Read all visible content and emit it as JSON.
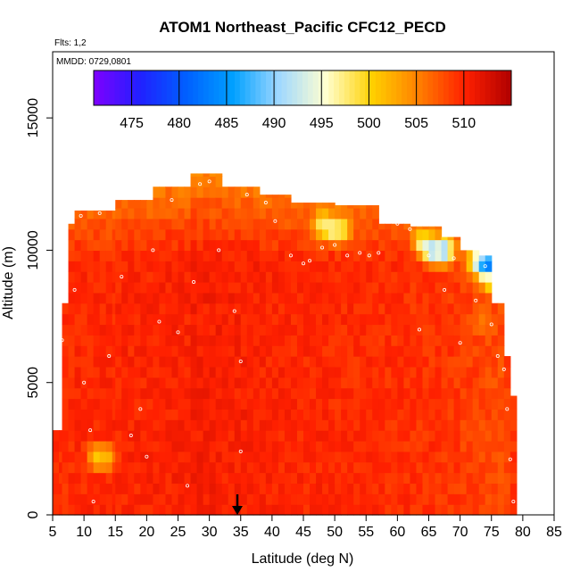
{
  "chart_data": {
    "type": "heatmap",
    "title": "ATOM1 Northeast_Pacific CFC12_PECD",
    "flights_label": "Flts: 1,2",
    "dates_label": "MMDD: 0729,0801",
    "xlabel": "Latitude (deg N)",
    "ylabel": "Altitude (m)",
    "xlim": [
      5,
      85
    ],
    "ylim": [
      0,
      17500
    ],
    "xticks": [
      "5",
      "10",
      "15",
      "20",
      "25",
      "30",
      "35",
      "40",
      "45",
      "50",
      "55",
      "60",
      "65",
      "70",
      "75",
      "80",
      "85"
    ],
    "yticks": [
      "0",
      "5000",
      "10000",
      "15000"
    ],
    "colorbar": {
      "range": [
        471,
        515
      ],
      "ticks": [
        "475",
        "480",
        "485",
        "490",
        "495",
        "500",
        "505",
        "510"
      ],
      "colors": [
        "#7f00ff",
        "#2020ff",
        "#0060ff",
        "#00a0ff",
        "#a0d8ff",
        "#ffffd0",
        "#ffd000",
        "#ff8000",
        "#ff2000",
        "#b00000"
      ]
    },
    "marker_latitude": 35,
    "profile_columns": [
      {
        "lat_start": 5,
        "lat_end": 6.5,
        "top_alt": 3200,
        "base_value": 509.5
      },
      {
        "lat_start": 6.5,
        "lat_end": 7.5,
        "top_alt": 8000,
        "base_value": 509.5
      },
      {
        "lat_start": 7.5,
        "lat_end": 8.5,
        "top_alt": 11000,
        "base_value": 509.5
      },
      {
        "lat_start": 8.5,
        "lat_end": 15,
        "top_alt": 11500,
        "base_value": 509.8
      },
      {
        "lat_start": 15,
        "lat_end": 21,
        "top_alt": 11900,
        "base_value": 510.0
      },
      {
        "lat_start": 21,
        "lat_end": 27,
        "top_alt": 12400,
        "base_value": 510.2
      },
      {
        "lat_start": 27,
        "lat_end": 32,
        "top_alt": 12900,
        "base_value": 510.5
      },
      {
        "lat_start": 32,
        "lat_end": 38,
        "top_alt": 12400,
        "base_value": 510.3
      },
      {
        "lat_start": 38,
        "lat_end": 43,
        "top_alt": 12100,
        "base_value": 510.0
      },
      {
        "lat_start": 43,
        "lat_end": 50,
        "top_alt": 11800,
        "base_value": 509.8
      },
      {
        "lat_start": 50,
        "lat_end": 57,
        "top_alt": 11700,
        "base_value": 509.6
      },
      {
        "lat_start": 57,
        "lat_end": 62,
        "top_alt": 11000,
        "base_value": 509.5
      },
      {
        "lat_start": 62,
        "lat_end": 67,
        "top_alt": 10900,
        "base_value": 509.3
      },
      {
        "lat_start": 67,
        "lat_end": 70,
        "top_alt": 10500,
        "base_value": 509.0
      },
      {
        "lat_start": 70,
        "lat_end": 73,
        "top_alt": 10000,
        "base_value": 508.6
      },
      {
        "lat_start": 73,
        "lat_end": 75,
        "top_alt": 9800,
        "base_value": 508.2
      },
      {
        "lat_start": 75,
        "lat_end": 77,
        "top_alt": 8000,
        "base_value": 508.0
      },
      {
        "lat_start": 77,
        "lat_end": 78,
        "top_alt": 6000,
        "base_value": 508.5
      },
      {
        "lat_start": 78,
        "lat_end": 79,
        "top_alt": 4500,
        "base_value": 509.0
      }
    ],
    "low_value_features": [
      {
        "lat": 12,
        "alt": 2200,
        "value": 500.5
      },
      {
        "lat": 13.5,
        "alt": 2200,
        "value": 501.5
      },
      {
        "lat": 48,
        "alt": 11000,
        "value": 497.5
      },
      {
        "lat": 49.5,
        "alt": 10800,
        "value": 496.0
      },
      {
        "lat": 51,
        "alt": 10800,
        "value": 497.0
      },
      {
        "lat": 64,
        "alt": 10300,
        "value": 496.5
      },
      {
        "lat": 65.5,
        "alt": 10000,
        "value": 490.0
      },
      {
        "lat": 67.5,
        "alt": 10000,
        "value": 488.5
      },
      {
        "lat": 72.5,
        "alt": 9600,
        "value": 495.0
      },
      {
        "lat": 74,
        "alt": 9400,
        "value": 485.5
      },
      {
        "lat": 75.5,
        "alt": 9200,
        "value": 474.0
      },
      {
        "lat": 76,
        "alt": 9800,
        "value": 478.5
      },
      {
        "lat": 75,
        "alt": 8800,
        "value": 499.0
      },
      {
        "lat": 73.5,
        "alt": 7300,
        "value": 505.5
      }
    ],
    "sample_points": [
      [
        6.5,
        6600
      ],
      [
        8.5,
        8500
      ],
      [
        9.5,
        11300
      ],
      [
        10,
        5000
      ],
      [
        11,
        3200
      ],
      [
        11.5,
        500
      ],
      [
        12.5,
        11400
      ],
      [
        14,
        6000
      ],
      [
        16,
        9000
      ],
      [
        17.5,
        3000
      ],
      [
        19,
        4000
      ],
      [
        20,
        2200
      ],
      [
        21,
        10000
      ],
      [
        22,
        7300
      ],
      [
        24,
        11900
      ],
      [
        25,
        6900
      ],
      [
        26.5,
        1100
      ],
      [
        27.5,
        8800
      ],
      [
        28.5,
        12500
      ],
      [
        30,
        12600
      ],
      [
        31.5,
        10000
      ],
      [
        33,
        12600
      ],
      [
        34,
        7700
      ],
      [
        35,
        5800
      ],
      [
        35,
        2400
      ],
      [
        36,
        12100
      ],
      [
        39,
        11800
      ],
      [
        40.5,
        11100
      ],
      [
        43,
        9800
      ],
      [
        45,
        9500
      ],
      [
        46,
        9600
      ],
      [
        48,
        10100
      ],
      [
        50,
        10200
      ],
      [
        52,
        9800
      ],
      [
        54,
        9900
      ],
      [
        55.5,
        9800
      ],
      [
        57,
        9900
      ],
      [
        60,
        11000
      ],
      [
        62,
        10800
      ],
      [
        63.5,
        7000
      ],
      [
        65,
        9800
      ],
      [
        66.5,
        11200
      ],
      [
        67.5,
        8500
      ],
      [
        69,
        9700
      ],
      [
        70,
        6500
      ],
      [
        71,
        10200
      ],
      [
        72.5,
        8100
      ],
      [
        74,
        9400
      ],
      [
        75,
        7200
      ],
      [
        76,
        6000
      ],
      [
        77,
        5500
      ],
      [
        77.5,
        4000
      ],
      [
        78,
        2100
      ],
      [
        78.5,
        500
      ]
    ]
  }
}
